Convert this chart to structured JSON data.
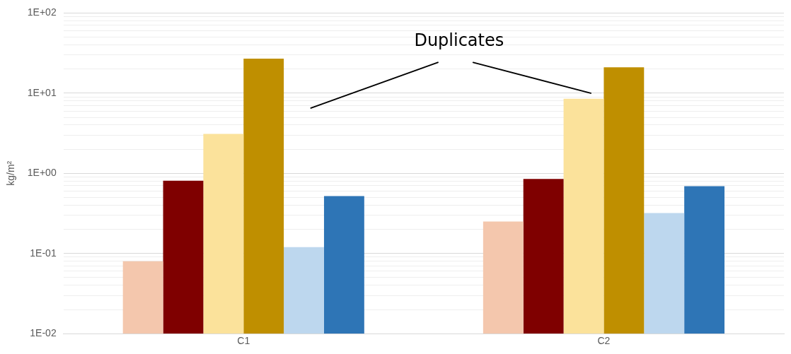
{
  "chart_data": {
    "type": "bar",
    "ylabel": "kg/m²",
    "categories": [
      "C1",
      "C2"
    ],
    "series": [
      {
        "color": "#f4c7ad",
        "values": [
          0.08,
          0.25
        ]
      },
      {
        "color": "#7f0000",
        "values": [
          0.81,
          0.85
        ]
      },
      {
        "color": "#fbe29b",
        "values": [
          3.1,
          8.5
        ]
      },
      {
        "color": "#bf8f00",
        "values": [
          27,
          21
        ]
      },
      {
        "color": "#bdd7ee",
        "values": [
          0.12,
          0.32
        ]
      },
      {
        "color": "#2e75b6",
        "values": [
          0.52,
          0.69
        ]
      }
    ],
    "log": "y",
    "ylim": [
      0.01,
      100
    ],
    "yticks": [
      {
        "value": 0.01,
        "label": "1E-02"
      },
      {
        "value": 0.1,
        "label": "1E-01"
      },
      {
        "value": 1,
        "label": "1E+00"
      },
      {
        "value": 10,
        "label": "1E+01"
      },
      {
        "value": 100,
        "label": "1E+02"
      }
    ],
    "grid": "y",
    "legend": false,
    "annotations": [
      "Duplicates"
    ]
  }
}
